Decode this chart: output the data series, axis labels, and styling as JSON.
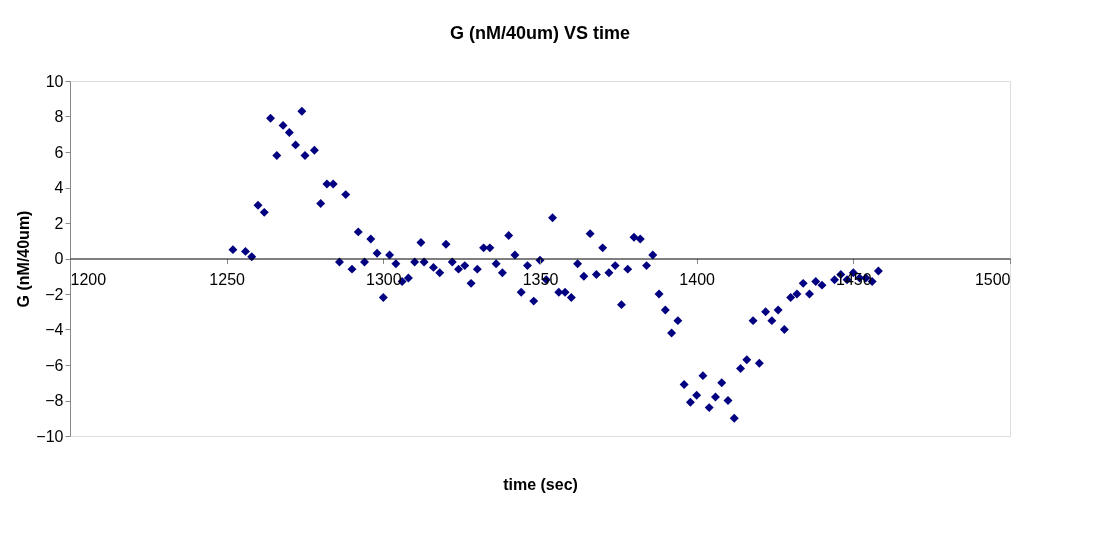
{
  "chart_data": {
    "type": "scatter",
    "title": "G (nM/40um) VS time",
    "xlabel": "time (sec)",
    "ylabel": "G (nM/40um)",
    "marker": "diamond",
    "grid": false,
    "xlim": [
      1200,
      1500
    ],
    "xticks": [
      1200,
      1250,
      1300,
      1350,
      1400,
      1450,
      1500
    ],
    "ylim": [
      -10,
      10
    ],
    "yticks": [
      -10,
      -8,
      -6,
      -4,
      -2,
      0,
      2,
      4,
      6,
      8,
      10
    ],
    "series": [
      {
        "color": "#000080",
        "x": [
          1252,
          1256,
          1258,
          1260,
          1262,
          1264,
          1266,
          1268,
          1270,
          1272,
          1274,
          1275,
          1278,
          1280,
          1282,
          1284,
          1288,
          1286,
          1290,
          1292,
          1294,
          1296,
          1298,
          1300,
          1302,
          1304,
          1306,
          1308,
          1310,
          1312,
          1313,
          1316,
          1318,
          1320,
          1322,
          1324,
          1326,
          1328,
          1330,
          1332,
          1334,
          1336,
          1338,
          1340,
          1342,
          1344,
          1346,
          1348,
          1350,
          1352,
          1354,
          1356,
          1358,
          1360,
          1362,
          1364,
          1366,
          1368,
          1370,
          1372,
          1374,
          1376,
          1378,
          1380,
          1382,
          1384,
          1386,
          1388,
          1390,
          1392,
          1394,
          1396,
          1398,
          1400,
          1402,
          1404,
          1406,
          1408,
          1410,
          1412,
          1414,
          1416,
          1418,
          1420,
          1422,
          1424,
          1426,
          1428,
          1430,
          1432,
          1434,
          1436,
          1438,
          1440,
          1444,
          1446,
          1448,
          1450,
          1452,
          1454,
          1456,
          1458
        ],
        "values": [
          0.5,
          0.4,
          0.1,
          3.0,
          2.6,
          7.9,
          5.8,
          7.5,
          7.1,
          6.4,
          8.3,
          5.8,
          6.1,
          3.1,
          4.2,
          4.2,
          3.6,
          -0.2,
          -0.6,
          1.5,
          -0.2,
          1.1,
          0.3,
          -2.2,
          0.2,
          -0.3,
          -1.3,
          -1.1,
          -0.2,
          0.9,
          -0.2,
          -0.5,
          -0.8,
          0.8,
          -0.2,
          -0.6,
          -0.4,
          -1.4,
          -0.6,
          0.6,
          0.6,
          -0.3,
          -0.8,
          1.3,
          0.2,
          -1.9,
          -0.4,
          -2.4,
          -0.1,
          -1.2,
          2.3,
          -1.9,
          -1.9,
          -2.2,
          -0.3,
          -1.0,
          1.4,
          -0.9,
          0.6,
          -0.8,
          -0.4,
          -2.6,
          -0.6,
          1.2,
          1.1,
          -0.4,
          0.2,
          -2.0,
          -2.9,
          -4.2,
          -3.5,
          -7.1,
          -8.1,
          -7.7,
          -6.6,
          -8.4,
          -7.8,
          -7.0,
          -8.0,
          -9.0,
          -6.2,
          -5.7,
          -3.5,
          -5.9,
          -3.0,
          -3.5,
          -2.9,
          -4.0,
          -2.2,
          -2.0,
          -1.4,
          -2.0,
          -1.3,
          -1.5,
          -1.2,
          -0.9,
          -1.2,
          -0.8,
          -1.1,
          -1.1,
          -1.3,
          -0.7
        ]
      }
    ]
  }
}
